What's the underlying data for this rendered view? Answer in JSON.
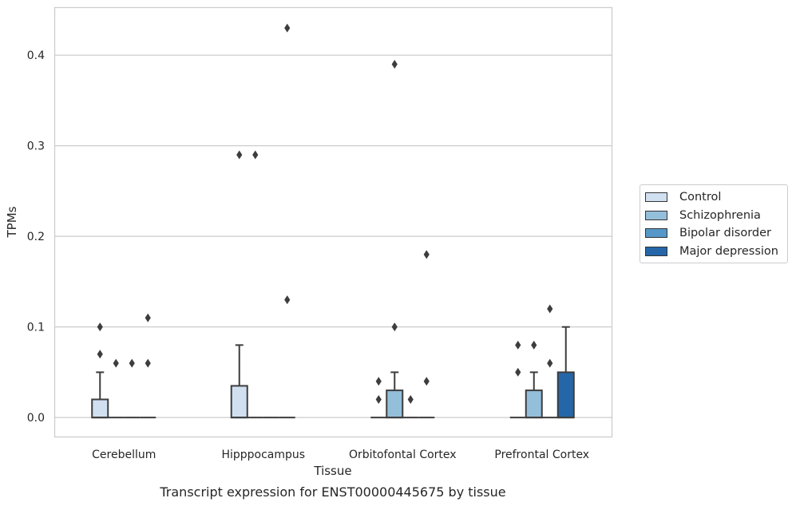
{
  "chart_data": {
    "type": "box",
    "title": "",
    "caption": "Transcript expression for ENST00000445675 by tissue",
    "xlabel": "Tissue",
    "ylabel": "TPMs",
    "ylim": [
      -0.021,
      0.453
    ],
    "yticks": [
      "0.0",
      "0.1",
      "0.2",
      "0.3",
      "0.4"
    ],
    "grid": true,
    "legend_position": "right",
    "categories": [
      "Cerebellum",
      "Hipppocampus",
      "Orbitofontal Cortex",
      "Prefrontal Cortex"
    ],
    "series": [
      {
        "name": "Control",
        "color": "#d0e0f1",
        "boxes": [
          {
            "q1": 0.0,
            "median": 0.0,
            "q3": 0.02,
            "whisker_low": 0.0,
            "whisker_high": 0.05,
            "outliers": [
              0.07,
              0.1
            ]
          },
          {
            "q1": 0.0,
            "median": 0.0,
            "q3": 0.035,
            "whisker_low": 0.0,
            "whisker_high": 0.08,
            "outliers": [
              0.29
            ]
          },
          {
            "q1": 0.0,
            "median": 0.0,
            "q3": 0.0,
            "whisker_low": 0.0,
            "whisker_high": 0.0,
            "outliers": [
              0.02,
              0.04
            ]
          },
          {
            "q1": 0.0,
            "median": 0.0,
            "q3": 0.0,
            "whisker_low": 0.0,
            "whisker_high": 0.0,
            "outliers": [
              0.05,
              0.08
            ]
          }
        ]
      },
      {
        "name": "Schizophrenia",
        "color": "#94bfdb",
        "boxes": [
          {
            "q1": 0.0,
            "median": 0.0,
            "q3": 0.0,
            "whisker_low": 0.0,
            "whisker_high": 0.0,
            "outliers": [
              0.06
            ]
          },
          {
            "q1": 0.0,
            "median": 0.0,
            "q3": 0.0,
            "whisker_low": 0.0,
            "whisker_high": 0.0,
            "outliers": [
              0.29
            ]
          },
          {
            "q1": 0.0,
            "median": 0.0,
            "q3": 0.03,
            "whisker_low": 0.0,
            "whisker_high": 0.05,
            "outliers": [
              0.1,
              0.39
            ]
          },
          {
            "q1": 0.0,
            "median": 0.0,
            "q3": 0.03,
            "whisker_low": 0.0,
            "whisker_high": 0.05,
            "outliers": [
              0.08
            ]
          }
        ]
      },
      {
        "name": "Bipolar disorder",
        "color": "#5597c9",
        "boxes": [
          {
            "q1": 0.0,
            "median": 0.0,
            "q3": 0.0,
            "whisker_low": 0.0,
            "whisker_high": 0.0,
            "outliers": [
              0.06
            ]
          },
          {
            "q1": 0.0,
            "median": 0.0,
            "q3": 0.0,
            "whisker_low": 0.0,
            "whisker_high": 0.0,
            "outliers": []
          },
          {
            "q1": 0.0,
            "median": 0.0,
            "q3": 0.0,
            "whisker_low": 0.0,
            "whisker_high": 0.0,
            "outliers": [
              0.02
            ]
          },
          {
            "q1": 0.0,
            "median": 0.0,
            "q3": 0.0,
            "whisker_low": 0.0,
            "whisker_high": 0.0,
            "outliers": [
              0.06,
              0.12
            ]
          }
        ]
      },
      {
        "name": "Major depression",
        "color": "#2566a8",
        "boxes": [
          {
            "q1": 0.0,
            "median": 0.0,
            "q3": 0.0,
            "whisker_low": 0.0,
            "whisker_high": 0.0,
            "outliers": [
              0.06,
              0.11
            ]
          },
          {
            "q1": 0.0,
            "median": 0.0,
            "q3": 0.0,
            "whisker_low": 0.0,
            "whisker_high": 0.0,
            "outliers": [
              0.13,
              0.43
            ]
          },
          {
            "q1": 0.0,
            "median": 0.0,
            "q3": 0.0,
            "whisker_low": 0.0,
            "whisker_high": 0.0,
            "outliers": [
              0.04,
              0.18
            ]
          },
          {
            "q1": 0.0,
            "median": 0.0,
            "q3": 0.05,
            "whisker_low": 0.0,
            "whisker_high": 0.1,
            "outliers": []
          }
        ]
      }
    ]
  }
}
